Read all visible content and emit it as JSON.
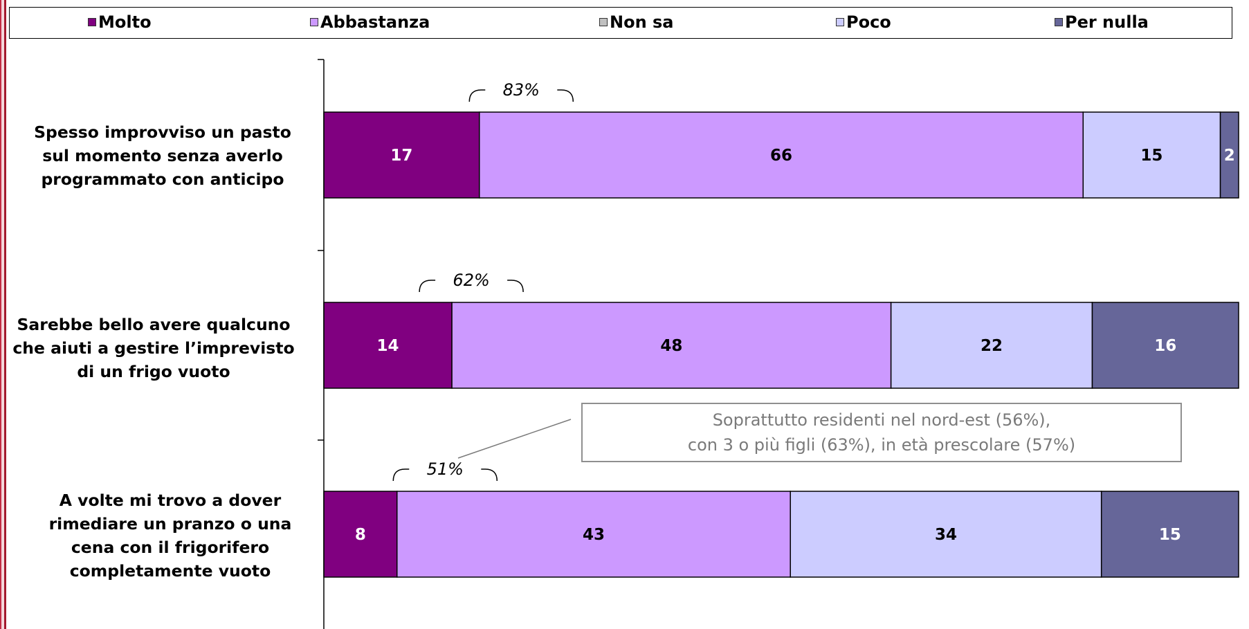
{
  "legend": [
    {
      "label": "Molto",
      "color": "#800080"
    },
    {
      "label": "Abbastanza",
      "color": "#cc99ff"
    },
    {
      "label": "Non sa",
      "color": "#c0c0c0"
    },
    {
      "label": "Poco",
      "color": "#ccccff"
    },
    {
      "label": "Per nulla",
      "color": "#666699"
    }
  ],
  "categories": [
    "Spesso improvviso un pasto sul momento senza averlo programmato con anticipo",
    "Sarebbe bello avere qualcuno che aiuti a gestire l’imprevisto di un frigo vuoto",
    "A volte mi trovo a dover rimediare un pranzo o una cena con il frigorifero completamente vuoto"
  ],
  "category_lines": [
    [
      "Spesso improvviso un pasto",
      "sul momento senza averlo",
      "programmato con anticipo"
    ],
    [
      "Sarebbe bello avere qualcuno",
      "che aiuti a gestire l’imprevisto",
      "di un frigo vuoto"
    ],
    [
      "A volte mi trovo a dover",
      "rimediare un pranzo o una",
      "cena con il frigorifero",
      "completamente vuoto"
    ]
  ],
  "callout": {
    "line1": "Soprattutto residenti nel nord-est (56%),",
    "line2": "con 3 o più figli (63%), in età prescolare (57%)"
  },
  "chart_data": {
    "type": "bar",
    "orientation": "horizontal",
    "stacked": true,
    "categories": [
      "Spesso improvviso un pasto sul momento senza averlo programmato con anticipo",
      "Sarebbe bello avere qualcuno che aiuti a gestire l’imprevisto di un frigo vuoto",
      "A volte mi trovo a dover rimediare un pranzo o una cena con il frigorifero completamente vuoto"
    ],
    "series": [
      {
        "name": "Molto",
        "values": [
          17,
          14,
          8
        ],
        "color": "#800080",
        "label_color": "#ffffff"
      },
      {
        "name": "Abbastanza",
        "values": [
          66,
          48,
          43
        ],
        "color": "#cc99ff",
        "label_color": "#000000"
      },
      {
        "name": "Non sa",
        "values": [
          0,
          0,
          0
        ],
        "color": "#c0c0c0",
        "label_color": "#000000"
      },
      {
        "name": "Poco",
        "values": [
          15,
          22,
          34
        ],
        "color": "#ccccff",
        "label_color": "#000000"
      },
      {
        "name": "Per nulla",
        "values": [
          2,
          16,
          15
        ],
        "color": "#666699",
        "label_color": "#ffffff"
      }
    ],
    "totals_label": [
      "83%",
      "62%",
      "51%"
    ],
    "xlim": [
      0,
      100
    ],
    "legend_position": "top",
    "grid": false,
    "title": "",
    "xlabel": "",
    "ylabel": ""
  }
}
